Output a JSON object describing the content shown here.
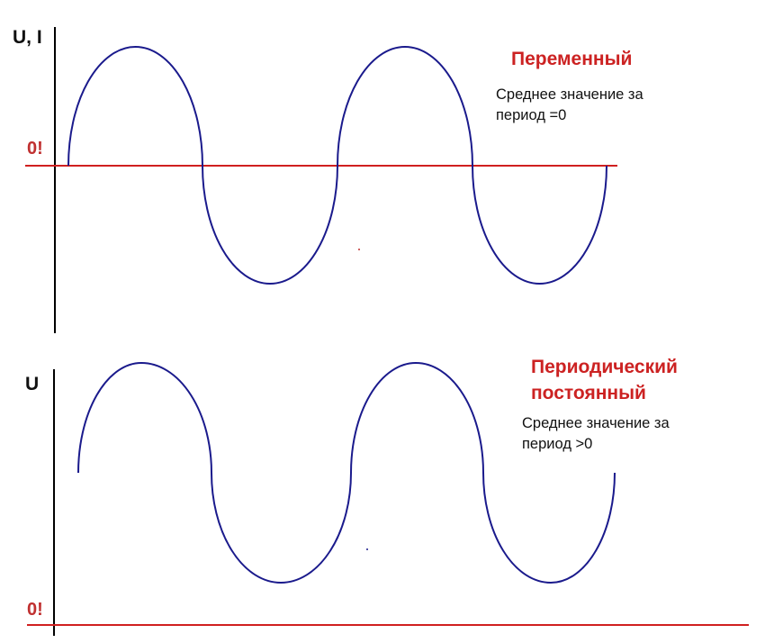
{
  "colors": {
    "wave": "#1a1a8c",
    "zero_line": "#d02020",
    "axis": "#000000",
    "title": "#cc2222"
  },
  "top_panel": {
    "axis_label": "U, I",
    "zero_label": "0!",
    "title": "Переменный",
    "note_line1": "Среднее значение за",
    "note_line2": "период =0"
  },
  "bottom_panel": {
    "axis_label": "U",
    "zero_label": "0!",
    "title_line1": "Периодический",
    "title_line2": "постоянный",
    "note_line1": "Среднее значение за",
    "note_line2": "период >0"
  }
}
